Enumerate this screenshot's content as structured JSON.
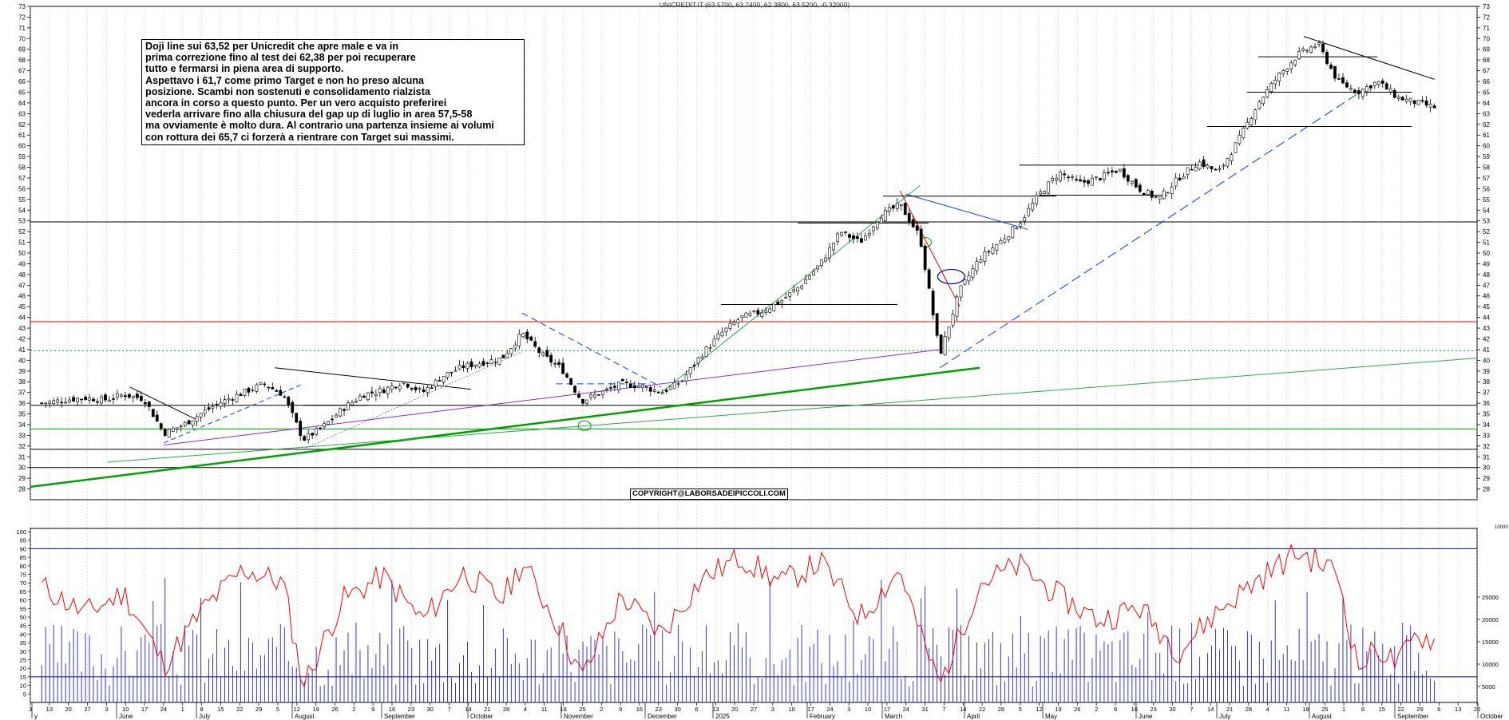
{
  "chart_data": {
    "type": "candlestick",
    "title": "UNICREDIT.IT (63.5700, 63.7400, 62.3800, 63.5200, -0.32000)",
    "price_axis": {
      "ylim": [
        27,
        73
      ],
      "ticks": [
        28,
        29,
        30,
        31,
        32,
        33,
        34,
        35,
        36,
        37,
        38,
        39,
        40,
        41,
        42,
        43,
        44,
        45,
        46,
        47,
        48,
        49,
        50,
        51,
        52,
        53,
        54,
        55,
        56,
        57,
        58,
        59,
        60,
        61,
        62,
        63,
        64,
        65,
        66,
        67,
        68,
        69,
        70,
        71,
        72,
        73
      ]
    },
    "oscillator_axis": {
      "ylim": [
        0,
        100
      ],
      "ticks": [
        5,
        10,
        15,
        20,
        25,
        30,
        35,
        40,
        45,
        50,
        55,
        60,
        65,
        70,
        75,
        80,
        85,
        90,
        95,
        100
      ]
    },
    "volume_axis": {
      "ticks": [
        "5000",
        "10000",
        "15000",
        "20000",
        "25000"
      ]
    },
    "date_day_labels": [
      "3",
      "13",
      "20",
      "27",
      "3",
      "10",
      "17",
      "24",
      "1",
      "8",
      "15",
      "22",
      "29",
      "5",
      "12",
      "19",
      "26",
      "2",
      "9",
      "16",
      "23",
      "30",
      "7",
      "14",
      "21",
      "28",
      "4",
      "11",
      "18",
      "25",
      "2",
      "9",
      "16",
      "23",
      "30",
      "6",
      "13",
      "20",
      "27",
      "3",
      "10",
      "17",
      "24",
      "3",
      "10",
      "17",
      "24",
      "31",
      "7",
      "14",
      "22",
      "28",
      "5",
      "12",
      "19",
      "26",
      "2",
      "9",
      "16",
      "23",
      "30",
      "7",
      "14",
      "21",
      "28",
      "4",
      "11",
      "18",
      "25",
      "1",
      "8",
      "15",
      "22",
      "29",
      "6",
      "13",
      "20"
    ],
    "month_labels": [
      "y",
      "June",
      "July",
      "August",
      "September",
      "October",
      "November",
      "December",
      "2025",
      "February",
      "March",
      "April",
      "May",
      "June",
      "July",
      "August",
      "September",
      "October"
    ],
    "close_series": [
      {
        "date": "2024-05-28",
        "close": 36.0
      },
      {
        "date": "2024-06-05",
        "close": 36.3
      },
      {
        "date": "2024-06-12",
        "close": 36.5
      },
      {
        "date": "2024-06-19",
        "close": 36.3
      },
      {
        "date": "2024-06-26",
        "close": 36.8
      },
      {
        "date": "2024-07-03",
        "close": 36.4
      },
      {
        "date": "2024-07-10",
        "close": 33.2
      },
      {
        "date": "2024-07-17",
        "close": 34.0
      },
      {
        "date": "2024-07-24",
        "close": 35.2
      },
      {
        "date": "2024-07-31",
        "close": 36.2
      },
      {
        "date": "2024-08-07",
        "close": 37.0
      },
      {
        "date": "2024-08-14",
        "close": 37.8
      },
      {
        "date": "2024-08-21",
        "close": 36.8
      },
      {
        "date": "2024-08-28",
        "close": 32.6
      },
      {
        "date": "2024-09-04",
        "close": 33.8
      },
      {
        "date": "2024-09-11",
        "close": 35.5
      },
      {
        "date": "2024-09-18",
        "close": 36.8
      },
      {
        "date": "2024-09-25",
        "close": 37.2
      },
      {
        "date": "2024-10-02",
        "close": 38.0
      },
      {
        "date": "2024-10-09",
        "close": 37.0
      },
      {
        "date": "2024-10-16",
        "close": 38.5
      },
      {
        "date": "2024-10-23",
        "close": 39.4
      },
      {
        "date": "2024-10-30",
        "close": 39.8
      },
      {
        "date": "2024-11-06",
        "close": 40.2
      },
      {
        "date": "2024-11-13",
        "close": 42.5
      },
      {
        "date": "2024-11-20",
        "close": 40.5
      },
      {
        "date": "2024-11-27",
        "close": 39.2
      },
      {
        "date": "2024-12-04",
        "close": 36.2
      },
      {
        "date": "2024-12-11",
        "close": 37.0
      },
      {
        "date": "2024-12-18",
        "close": 37.8
      },
      {
        "date": "2024-12-25",
        "close": 37.6
      },
      {
        "date": "2025-01-01",
        "close": 37.0
      },
      {
        "date": "2025-01-08",
        "close": 38.0
      },
      {
        "date": "2025-01-15",
        "close": 40.5
      },
      {
        "date": "2025-01-22",
        "close": 42.5
      },
      {
        "date": "2025-01-29",
        "close": 44.0
      },
      {
        "date": "2025-02-05",
        "close": 44.5
      },
      {
        "date": "2025-02-12",
        "close": 45.5
      },
      {
        "date": "2025-02-19",
        "close": 47.0
      },
      {
        "date": "2025-02-26",
        "close": 49.0
      },
      {
        "date": "2025-03-05",
        "close": 52.0
      },
      {
        "date": "2025-03-12",
        "close": 51.0
      },
      {
        "date": "2025-03-19",
        "close": 53.5
      },
      {
        "date": "2025-03-26",
        "close": 54.5
      },
      {
        "date": "2025-04-02",
        "close": 51.5
      },
      {
        "date": "2025-04-09",
        "close": 40.5
      },
      {
        "date": "2025-04-16",
        "close": 46.5
      },
      {
        "date": "2025-04-23",
        "close": 49.5
      },
      {
        "date": "2025-04-30",
        "close": 51.0
      },
      {
        "date": "2025-05-07",
        "close": 52.8
      },
      {
        "date": "2025-05-14",
        "close": 55.5
      },
      {
        "date": "2025-05-21",
        "close": 57.5
      },
      {
        "date": "2025-05-28",
        "close": 56.5
      },
      {
        "date": "2025-06-04",
        "close": 57.0
      },
      {
        "date": "2025-06-11",
        "close": 57.8
      },
      {
        "date": "2025-06-18",
        "close": 56.0
      },
      {
        "date": "2025-06-25",
        "close": 55.0
      },
      {
        "date": "2025-07-02",
        "close": 57.0
      },
      {
        "date": "2025-07-09",
        "close": 58.5
      },
      {
        "date": "2025-07-16",
        "close": 57.5
      },
      {
        "date": "2025-07-23",
        "close": 60.5
      },
      {
        "date": "2025-07-30",
        "close": 64.0
      },
      {
        "date": "2025-08-06",
        "close": 66.5
      },
      {
        "date": "2025-08-13",
        "close": 68.5
      },
      {
        "date": "2025-08-20",
        "close": 69.5
      },
      {
        "date": "2025-08-27",
        "close": 66.0
      },
      {
        "date": "2025-09-03",
        "close": 65.0
      },
      {
        "date": "2025-09-10",
        "close": 66.0
      },
      {
        "date": "2025-09-17",
        "close": 64.5
      },
      {
        "date": "2025-09-24",
        "close": 64.0
      },
      {
        "date": "2025-10-01",
        "close": 63.52
      }
    ],
    "oscillator_series": [
      {
        "date": "2024-05-28",
        "value": 68
      },
      {
        "date": "2024-06-12",
        "value": 52
      },
      {
        "date": "2024-06-26",
        "value": 64
      },
      {
        "date": "2024-07-10",
        "value": 22
      },
      {
        "date": "2024-07-24",
        "value": 55
      },
      {
        "date": "2024-08-07",
        "value": 78
      },
      {
        "date": "2024-08-21",
        "value": 70
      },
      {
        "date": "2024-08-28",
        "value": 10
      },
      {
        "date": "2024-09-11",
        "value": 60
      },
      {
        "date": "2024-09-25",
        "value": 74
      },
      {
        "date": "2024-10-09",
        "value": 48
      },
      {
        "date": "2024-10-23",
        "value": 76
      },
      {
        "date": "2024-11-06",
        "value": 60
      },
      {
        "date": "2024-11-13",
        "value": 82
      },
      {
        "date": "2024-11-27",
        "value": 42
      },
      {
        "date": "2024-12-04",
        "value": 14
      },
      {
        "date": "2024-12-18",
        "value": 62
      },
      {
        "date": "2025-01-01",
        "value": 40
      },
      {
        "date": "2025-01-15",
        "value": 72
      },
      {
        "date": "2025-01-29",
        "value": 85
      },
      {
        "date": "2025-02-12",
        "value": 70
      },
      {
        "date": "2025-02-26",
        "value": 82
      },
      {
        "date": "2025-03-12",
        "value": 50
      },
      {
        "date": "2025-03-26",
        "value": 78
      },
      {
        "date": "2025-04-02",
        "value": 40
      },
      {
        "date": "2025-04-09",
        "value": 10
      },
      {
        "date": "2025-04-23",
        "value": 70
      },
      {
        "date": "2025-05-07",
        "value": 80
      },
      {
        "date": "2025-05-21",
        "value": 62
      },
      {
        "date": "2025-06-04",
        "value": 48
      },
      {
        "date": "2025-06-18",
        "value": 56
      },
      {
        "date": "2025-07-02",
        "value": 30
      },
      {
        "date": "2025-07-16",
        "value": 54
      },
      {
        "date": "2025-07-30",
        "value": 72
      },
      {
        "date": "2025-08-13",
        "value": 88
      },
      {
        "date": "2025-08-27",
        "value": 76
      },
      {
        "date": "2025-09-03",
        "value": 20
      },
      {
        "date": "2025-09-10",
        "value": 32
      },
      {
        "date": "2025-09-17",
        "value": 22
      },
      {
        "date": "2025-09-24",
        "value": 40
      },
      {
        "date": "2025-10-01",
        "value": 35
      }
    ],
    "horizontal_levels": [
      {
        "value": 52.9,
        "color": "#000000"
      },
      {
        "value": 43.6,
        "color": "#e00000"
      },
      {
        "value": 40.9,
        "color": "#009900",
        "style": "dotted"
      },
      {
        "value": 35.8,
        "color": "#000000"
      },
      {
        "value": 33.6,
        "color": "#009900"
      },
      {
        "value": 31.7,
        "color": "#000000"
      },
      {
        "value": 30.0,
        "color": "#000000"
      }
    ],
    "oscillator_levels": [
      90,
      15
    ],
    "grid": true,
    "legend": "none",
    "colors": {
      "price": "#000000",
      "oscillator": "#ff0000",
      "volume": "#0000cc",
      "support": "#009900",
      "resistance": "#ff0000"
    }
  },
  "note": {
    "lines": [
      "Doji line sui 63,52 per Unicredit che apre male e va in",
      "prima correzione fino al test dei 62,38 per poi recuperare",
      "tutto e fermarsi in piena area di supporto.",
      "Aspettavo i 61,7 come primo Target e non ho preso alcuna",
      "posizione. Scambi non sostenuti e consolidamento rialzista",
      "ancora in corso a questo punto. Per un vero acquisto preferirei",
      "vederla arrivare fino alla chiusura del gap up di luglio in area 57,5-58",
      "ma ovviamente è molto dura. Al contrario una partenza insieme ai volumi",
      "con rottura dei 65,7 ci forzerà a rientrare con Target sui massimi."
    ]
  },
  "copyright": "COPYRIGHT@LABORSADEIPICCOLI.COM",
  "corner_label": "10000"
}
